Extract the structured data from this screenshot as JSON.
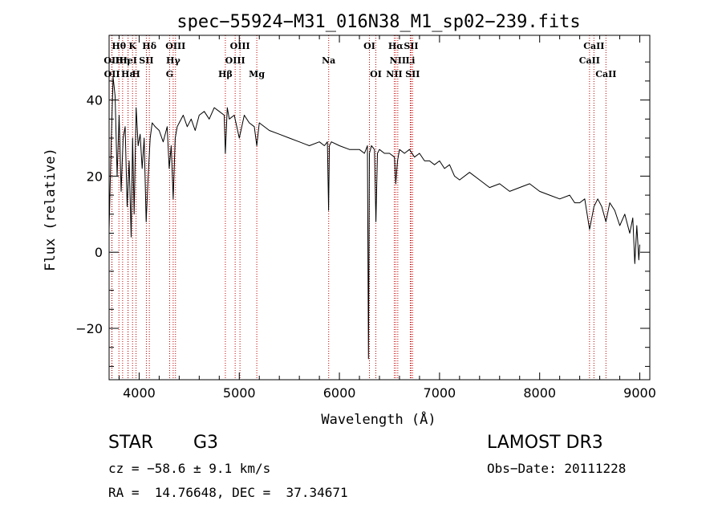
{
  "chart_data": {
    "type": "line",
    "title": "spec−55924−M31_016N38_M1_sp02−239.fits",
    "xlabel": "Wavelength (Å)",
    "ylabel": "Flux (relative)",
    "xlim": [
      3700,
      9100
    ],
    "ylim": [
      -33.5,
      57
    ],
    "xticks": [
      4000,
      5000,
      6000,
      7000,
      8000,
      9000
    ],
    "xtick_labels": [
      "4000",
      "5000",
      "6000",
      "7000",
      "8000",
      "9000"
    ],
    "yticks": [
      -20,
      0,
      20,
      40
    ],
    "ytick_labels": [
      "−20",
      "0",
      "20",
      "40"
    ],
    "series": [
      {
        "name": "spectrum",
        "x": [
          3700,
          3720,
          3740,
          3760,
          3780,
          3800,
          3820,
          3840,
          3860,
          3880,
          3900,
          3920,
          3935,
          3950,
          3970,
          3990,
          4010,
          4030,
          4050,
          4070,
          4090,
          4110,
          4130,
          4160,
          4200,
          4240,
          4280,
          4300,
          4320,
          4340,
          4360,
          4380,
          4400,
          4440,
          4480,
          4520,
          4560,
          4600,
          4650,
          4700,
          4750,
          4800,
          4850,
          4861,
          4880,
          4900,
          4950,
          5000,
          5050,
          5100,
          5150,
          5175,
          5200,
          5300,
          5400,
          5500,
          5600,
          5700,
          5800,
          5850,
          5880,
          5892,
          5900,
          5920,
          6000,
          6100,
          6200,
          6250,
          6280,
          6290,
          6300,
          6310,
          6320,
          6350,
          6365,
          6380,
          6400,
          6450,
          6500,
          6550,
          6563,
          6580,
          6600,
          6650,
          6700,
          6750,
          6800,
          6850,
          6900,
          6950,
          7000,
          7050,
          7100,
          7150,
          7200,
          7300,
          7400,
          7500,
          7600,
          7700,
          7800,
          7900,
          8000,
          8100,
          8200,
          8300,
          8350,
          8400,
          8450,
          8498,
          8542,
          8580,
          8620,
          8662,
          8700,
          8750,
          8800,
          8850,
          8900,
          8930,
          8950,
          8970,
          8990,
          9000
        ],
        "y": [
          6,
          28,
          46,
          41,
          20,
          36,
          16,
          30,
          33,
          12,
          24,
          4,
          30,
          10,
          38,
          28,
          31,
          22,
          30,
          8,
          20,
          30,
          34,
          33,
          32,
          29,
          33,
          22,
          28,
          14,
          30,
          33,
          34,
          36,
          33,
          35,
          32,
          36,
          37,
          35,
          38,
          37,
          36,
          26,
          38,
          35,
          36,
          30,
          36,
          34,
          33,
          28,
          34,
          32,
          31,
          30,
          29,
          28,
          29,
          28,
          29,
          11,
          28,
          29,
          28,
          27,
          27,
          26,
          28,
          -28,
          26,
          27,
          28,
          27,
          8,
          26,
          27,
          26,
          26,
          25,
          18,
          24,
          27,
          26,
          27,
          25,
          26,
          24,
          24,
          23,
          24,
          22,
          23,
          20,
          19,
          21,
          19,
          17,
          18,
          16,
          17,
          18,
          16,
          15,
          14,
          15,
          13,
          13,
          14,
          6,
          12,
          14,
          12,
          8,
          13,
          11,
          7,
          10,
          5,
          9,
          -3,
          7,
          -2,
          2
        ]
      }
    ],
    "lines": [
      {
        "name": "Hθ",
        "wave": 3798,
        "row": 0
      },
      {
        "name": "OII",
        "wave": 3727,
        "row": 1
      },
      {
        "name": "OII",
        "wave": 3729,
        "row": 2
      },
      {
        "name": "Hη",
        "wave": 3835,
        "row": 1
      },
      {
        "name": "K",
        "wave": 3934,
        "row": 0
      },
      {
        "name": "Hε",
        "wave": 3889,
        "row": 2
      },
      {
        "name": "HeI",
        "wave": 3889,
        "row": 1
      },
      {
        "name": "SII",
        "wave": 4072,
        "row": 1
      },
      {
        "name": "H",
        "wave": 3969,
        "row": 2
      },
      {
        "name": "Hδ",
        "wave": 4102,
        "row": 0
      },
      {
        "name": "OIII",
        "wave": 4363,
        "row": 0
      },
      {
        "name": "Hγ",
        "wave": 4340,
        "row": 1
      },
      {
        "name": "G",
        "wave": 4305,
        "row": 2
      },
      {
        "name": "Hβ",
        "wave": 4861,
        "row": 2
      },
      {
        "name": "OIII",
        "wave": 5007,
        "row": 0
      },
      {
        "name": "OIII",
        "wave": 4959,
        "row": 1
      },
      {
        "name": "Mg",
        "wave": 5175,
        "row": 2
      },
      {
        "name": "Na",
        "wave": 5893,
        "row": 1
      },
      {
        "name": "OI",
        "wave": 6300,
        "row": 0
      },
      {
        "name": "OI",
        "wave": 6364,
        "row": 2
      },
      {
        "name": "Hα",
        "wave": 6563,
        "row": 0
      },
      {
        "name": "NII",
        "wave": 6583,
        "row": 1
      },
      {
        "name": "NII",
        "wave": 6548,
        "row": 2
      },
      {
        "name": "SII",
        "wave": 6716,
        "row": 0
      },
      {
        "name": "Li",
        "wave": 6708,
        "row": 1
      },
      {
        "name": "SII",
        "wave": 6731,
        "row": 2
      },
      {
        "name": "CaII",
        "wave": 8542,
        "row": 0
      },
      {
        "name": "CaII",
        "wave": 8498,
        "row": 1
      },
      {
        "name": "CaII",
        "wave": 8662,
        "row": 2
      }
    ]
  },
  "info": {
    "class": "STAR",
    "subclass": "G3",
    "survey": "LAMOST DR3",
    "cz": "cz = −58.6 ± 9.1 km/s",
    "obs_date": "Obs−Date: 20111228",
    "coords": "RA =  14.76648, DEC =  37.34671"
  },
  "colors": {
    "spectrum": "#000000",
    "line_markers": "#c00000",
    "axes": "#000000"
  }
}
